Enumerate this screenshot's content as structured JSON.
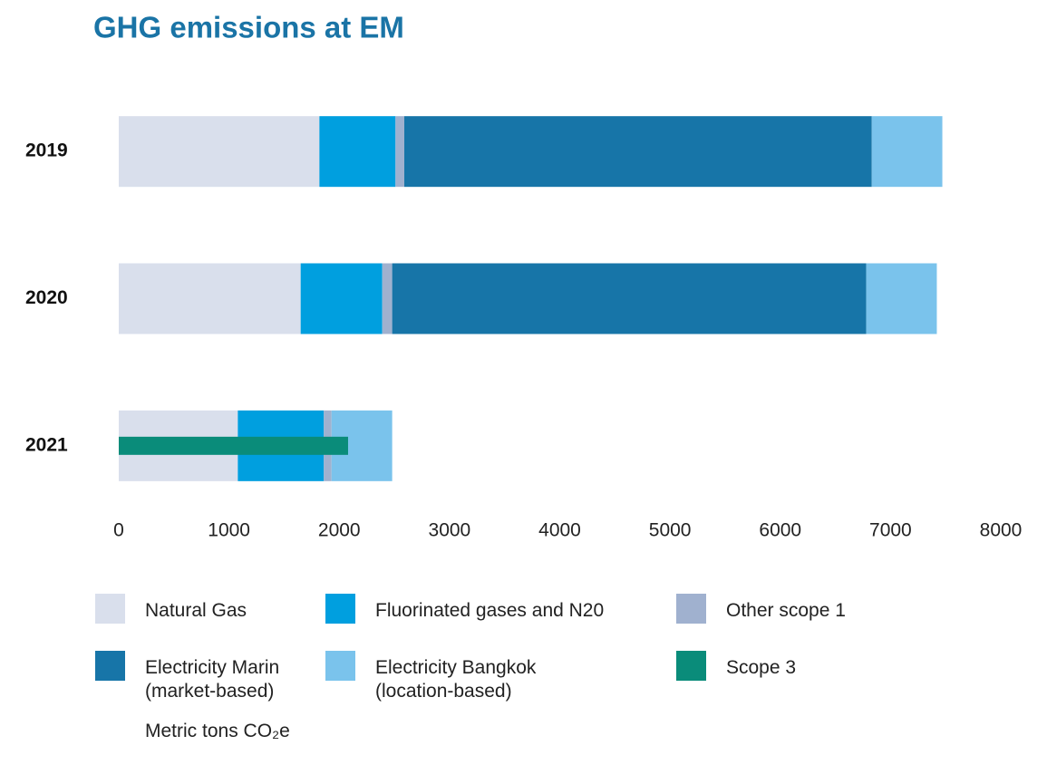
{
  "chart_data": {
    "type": "stacked-bar-horizontal",
    "title": "GHG emissions at EM",
    "x_label": "Metric tons CO₂e",
    "categories": [
      "2019",
      "2020",
      "2021"
    ],
    "series": [
      {
        "name": "Natural Gas",
        "color": "#d9dfec",
        "values": [
          1820,
          1650,
          1080
        ]
      },
      {
        "name": "Fluorinated gases and N20",
        "color": "#009fdf",
        "values": [
          690,
          740,
          780
        ]
      },
      {
        "name": "Other scope 1",
        "color": "#a0b1cf",
        "values": [
          80,
          90,
          70
        ]
      },
      {
        "name": "Electricity Marin\n(market-based)",
        "color": "#1775a8",
        "values": [
          4240,
          4300,
          0
        ]
      },
      {
        "name": "Electricity Bangkok\n(location-based)",
        "color": "#7ac3ec",
        "values": [
          640,
          640,
          550
        ]
      },
      {
        "name": "Scope 3",
        "color": "#0a8c7a",
        "values": [
          null,
          null,
          2080
        ],
        "overlay": true
      }
    ],
    "xlim": [
      0,
      8000
    ],
    "xticks": [
      0,
      1000,
      2000,
      3000,
      4000,
      5000,
      6000,
      7000,
      8000
    ],
    "grid": false
  }
}
